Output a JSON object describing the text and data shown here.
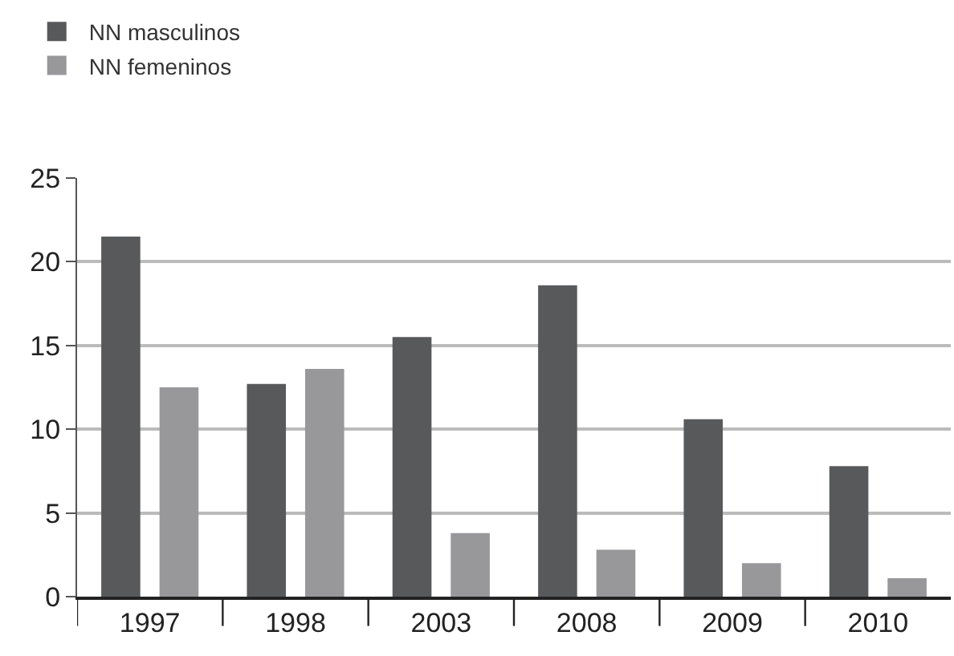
{
  "chart_data": {
    "type": "bar",
    "categories": [
      "1997",
      "1998",
      "2003",
      "2008",
      "2009",
      "2010"
    ],
    "series": [
      {
        "name": "NN masculinos",
        "color": "#58595b",
        "values": [
          21.5,
          12.7,
          15.5,
          18.6,
          10.6,
          7.8
        ]
      },
      {
        "name": "NN femeninos",
        "color": "#98989b",
        "values": [
          12.5,
          13.6,
          3.8,
          2.8,
          2.0,
          1.1
        ]
      }
    ],
    "ylim": [
      0,
      25
    ],
    "yticks": [
      0,
      5,
      10,
      15,
      20,
      25
    ],
    "grid": "y",
    "legend": "top left"
  }
}
